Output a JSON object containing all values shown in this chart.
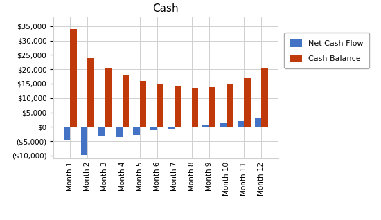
{
  "title": "Cash",
  "categories": [
    "Month 1",
    "Month 2",
    "Month 3",
    "Month 4",
    "Month 5",
    "Month 6",
    "Month 7",
    "Month 8",
    "Month 9",
    "Month 10",
    "Month 11",
    "Month 12"
  ],
  "net_cash_flow": [
    -4800,
    -9800,
    -3200,
    -3500,
    -2800,
    -1200,
    -600,
    -200,
    500,
    1200,
    2000,
    3000
  ],
  "cash_balance": [
    34000,
    24000,
    20500,
    18000,
    16000,
    14800,
    14000,
    13500,
    13800,
    15000,
    17000,
    20200
  ],
  "bar_color_net": "#4472C4",
  "bar_color_cash": "#C0390B",
  "legend_labels": [
    "Net Cash Flow",
    "Cash Balance"
  ],
  "ylim": [
    -11000,
    38000
  ],
  "yticks": [
    -10000,
    -5000,
    0,
    5000,
    10000,
    15000,
    20000,
    25000,
    30000,
    35000
  ],
  "title_fontsize": 11,
  "legend_fontsize": 8,
  "tick_fontsize": 7.5,
  "bg_color": "#FFFFFF",
  "plot_bg_color": "#FFFFFF",
  "grid_color": "#D0D0D0"
}
